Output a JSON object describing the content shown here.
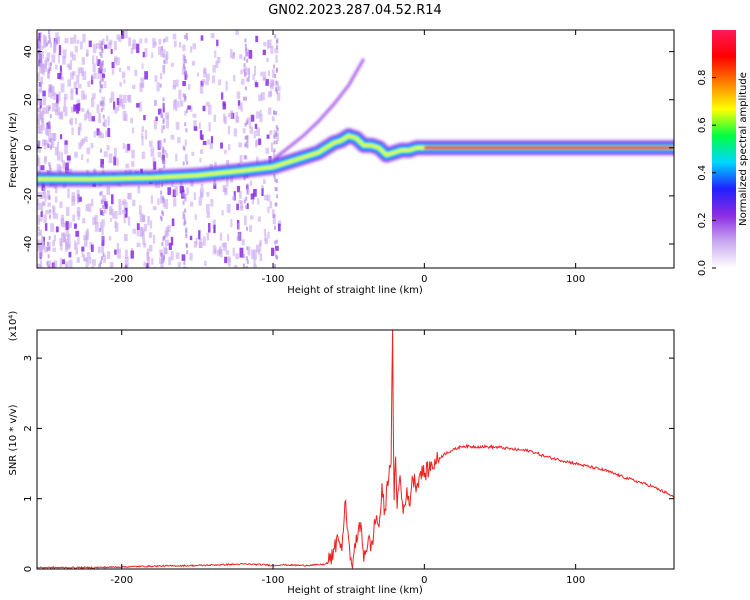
{
  "title": "GN02.2023.287.04.52.R14",
  "chart_data": [
    {
      "type": "heatmap",
      "xlabel": "Height of straight line (km)",
      "ylabel": "Frequency (Hz)",
      "xlim": [
        -256,
        165
      ],
      "ylim": [
        -50,
        49
      ],
      "xticks": [
        -200,
        -100,
        0,
        100
      ],
      "yticks": [
        -40,
        -20,
        0,
        20,
        40
      ],
      "colorbar": {
        "label": "Normalized spectral amplitude",
        "range": [
          0,
          1
        ],
        "ticks": [
          0.0,
          0.2,
          0.4,
          0.6,
          0.8
        ],
        "colormap": [
          "#ffffff",
          "#c9a8f0",
          "#8a2be2",
          "#2020ff",
          "#00d8ff",
          "#00ff40",
          "#ffff00",
          "#ff8000",
          "#ff0000",
          "#ff1a5a"
        ]
      },
      "ridge": {
        "x": [
          -256,
          -220,
          -180,
          -150,
          -120,
          -100,
          -90,
          -80,
          -70,
          -60,
          -55,
          -50,
          -45,
          -40,
          -35,
          -30,
          -25,
          -20,
          -15,
          -10,
          -5,
          0,
          20,
          50,
          100,
          165
        ],
        "y": [
          -13,
          -13,
          -12.5,
          -11.5,
          -9.5,
          -8,
          -6,
          -4,
          -2,
          2,
          3,
          5,
          4,
          1,
          1,
          0,
          -3,
          -2,
          -1,
          -1,
          0,
          0,
          0,
          0,
          0,
          0
        ]
      },
      "upper_branch": {
        "x": [
          -100,
          -90,
          -80,
          -70,
          -60,
          -50,
          -40
        ],
        "y": [
          -5,
          0,
          5,
          11,
          18,
          26,
          37
        ]
      }
    },
    {
      "type": "line",
      "xlabel": "Height of straight line (km)",
      "ylabel": "SNR (10 * v/v)",
      "yscale_label": "(x10⁴)",
      "xlim": [
        -256,
        165
      ],
      "ylim": [
        0,
        3.4
      ],
      "xticks": [
        -200,
        -100,
        0,
        100
      ],
      "yticks": [
        0,
        1,
        2,
        3
      ],
      "color": "#ee2222",
      "series": [
        {
          "x": [
            -256,
            -220,
            -180,
            -150,
            -120,
            -105,
            -100,
            -95,
            -80,
            -70,
            -65,
            -60,
            -57,
            -55,
            -52,
            -50,
            -47,
            -45,
            -42,
            -40,
            -37,
            -35,
            -32,
            -30,
            -28,
            -26,
            -24,
            -22,
            -21,
            -20,
            -19,
            -18,
            -16,
            -14,
            -12,
            -10,
            -8,
            -5,
            -2,
            0,
            5,
            10,
            15,
            20,
            25,
            30,
            40,
            50,
            60,
            70,
            80,
            90,
            100,
            110,
            120,
            130,
            140,
            150,
            160,
            165
          ],
          "y": [
            0.02,
            0.02,
            0.04,
            0.05,
            0.07,
            0.06,
            0.05,
            0.06,
            0.05,
            0.06,
            0.07,
            0.2,
            0.5,
            0.25,
            0.95,
            0.3,
            0.1,
            0.45,
            0.6,
            0.2,
            0.4,
            0.3,
            0.75,
            0.6,
            1.1,
            0.8,
            1.3,
            1.6,
            3.3,
            0.9,
            1.6,
            0.95,
            1.3,
            0.8,
            1.1,
            0.9,
            1.3,
            1.2,
            1.4,
            1.35,
            1.48,
            1.58,
            1.66,
            1.7,
            1.75,
            1.74,
            1.74,
            1.73,
            1.7,
            1.68,
            1.6,
            1.55,
            1.5,
            1.45,
            1.4,
            1.32,
            1.25,
            1.18,
            1.08,
            1.02
          ]
        }
      ]
    }
  ]
}
